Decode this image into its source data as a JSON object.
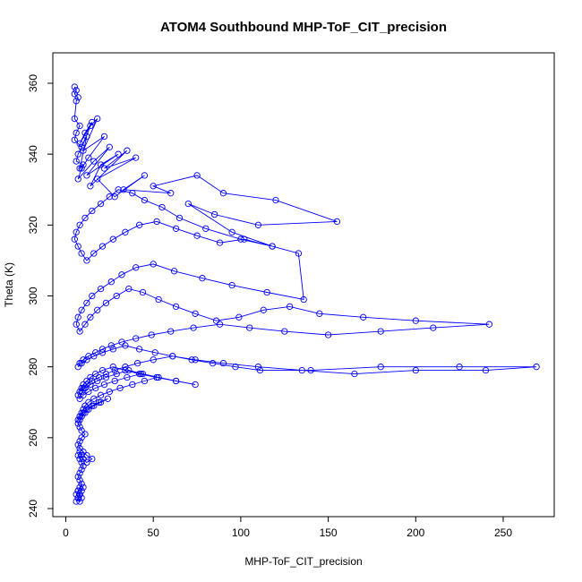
{
  "chart_data": {
    "type": "line",
    "title": "ATOM4 Southbound MHP-ToF_CIT_precision",
    "xlabel": "MHP-ToF_CIT_precision",
    "ylabel": "Theta (K)",
    "xlim": [
      0,
      280
    ],
    "ylim": [
      237,
      368
    ],
    "xticks": [
      0,
      50,
      100,
      150,
      200,
      250
    ],
    "yticks": [
      240,
      260,
      280,
      300,
      320,
      340,
      360
    ],
    "grid": false,
    "style": "line with open circle markers",
    "color": "#0000ff",
    "series": [
      {
        "name": "MHP-ToF_CIT_precision",
        "x": [
          5,
          6,
          5,
          7,
          6,
          5,
          8,
          6,
          5,
          9,
          7,
          6,
          10,
          8,
          12,
          9,
          15,
          11,
          8,
          14,
          18,
          10,
          22,
          13,
          9,
          7,
          16,
          25,
          12,
          30,
          20,
          14,
          35,
          22,
          40,
          18,
          28,
          45,
          33,
          60,
          50,
          75,
          90,
          120,
          155,
          110,
          85,
          70,
          95,
          118,
          100,
          80,
          65,
          55,
          45,
          38,
          30,
          25,
          20,
          15,
          11,
          8,
          6,
          5,
          7,
          9,
          12,
          16,
          21,
          27,
          34,
          42,
          52,
          63,
          75,
          88,
          102,
          118,
          133,
          136,
          115,
          95,
          78,
          62,
          50,
          40,
          32,
          26,
          20,
          15,
          12,
          9,
          7,
          6,
          8,
          11,
          14,
          18,
          23,
          29,
          36,
          44,
          53,
          63,
          74,
          86,
          99,
          113,
          128,
          145,
          170,
          200,
          242,
          210,
          180,
          150,
          125,
          105,
          88,
          73,
          60,
          49,
          40,
          32,
          26,
          21,
          17,
          13,
          10,
          8,
          7,
          9,
          12,
          16,
          21,
          27,
          34,
          42,
          51,
          61,
          72,
          84,
          97,
          111,
          140,
          180,
          225,
          269,
          240,
          200,
          165,
          135,
          110,
          90,
          74,
          61,
          50,
          41,
          34,
          28,
          23,
          19,
          15,
          12,
          10,
          9,
          11,
          14,
          18,
          23,
          29,
          36,
          44,
          53,
          63,
          74,
          63,
          52,
          42,
          34,
          27,
          21,
          17,
          14,
          12,
          10,
          9,
          8,
          7,
          8,
          10,
          13,
          17,
          22,
          28,
          35,
          43,
          52,
          45,
          38,
          31,
          25,
          20,
          16,
          13,
          11,
          10,
          9,
          8,
          7,
          8,
          10,
          12,
          15,
          19,
          24,
          20,
          16,
          13,
          11,
          9,
          8,
          7,
          8,
          9,
          11,
          9,
          8,
          7,
          8,
          10,
          12,
          15,
          12,
          10,
          9,
          8,
          7,
          8,
          9,
          10,
          9,
          8,
          7,
          8,
          9,
          8,
          7,
          8,
          9,
          8,
          7,
          6,
          7,
          8,
          7,
          6,
          7,
          8,
          9,
          10
        ],
        "y": [
          359,
          358,
          357,
          356,
          355,
          350,
          348,
          346,
          344,
          342,
          340,
          338,
          337,
          336,
          345,
          342,
          349,
          346,
          343,
          348,
          350,
          341,
          345,
          339,
          336,
          333,
          338,
          342,
          334,
          340,
          337,
          331,
          341,
          336,
          339,
          333,
          328,
          334,
          330,
          329,
          331,
          334,
          329,
          327,
          321,
          320,
          323,
          326,
          318,
          314,
          316,
          319,
          322,
          325,
          327,
          329,
          330,
          328,
          326,
          324,
          322,
          320,
          318,
          316,
          314,
          312,
          310,
          312,
          314,
          316,
          318,
          320,
          321,
          319,
          317,
          315,
          316,
          314,
          312,
          299,
          301,
          303,
          305,
          307,
          309,
          308,
          306,
          304,
          302,
          300,
          298,
          296,
          294,
          292,
          290,
          292,
          294,
          296,
          298,
          300,
          302,
          301,
          299,
          297,
          295,
          293,
          294,
          296,
          297,
          295,
          294,
          293,
          292,
          291,
          290,
          289,
          290,
          291,
          292,
          291,
          290,
          289,
          288,
          287,
          286,
          285,
          284,
          283,
          282,
          281,
          280,
          281,
          282,
          283,
          284,
          285,
          286,
          285,
          284,
          283,
          282,
          281,
          280,
          279,
          279,
          280,
          280,
          280,
          279,
          279,
          278,
          279,
          280,
          281,
          282,
          283,
          282,
          281,
          280,
          279,
          278,
          277,
          276,
          275,
          274,
          273,
          274,
          275,
          276,
          277,
          278,
          279,
          278,
          277,
          276,
          275,
          276,
          277,
          278,
          279,
          280,
          279,
          278,
          277,
          276,
          275,
          274,
          273,
          272,
          271,
          272,
          273,
          274,
          275,
          276,
          277,
          278,
          277,
          276,
          275,
          274,
          273,
          272,
          271,
          270,
          269,
          268,
          267,
          266,
          265,
          266,
          267,
          268,
          269,
          270,
          271,
          270,
          269,
          268,
          267,
          266,
          265,
          264,
          263,
          262,
          261,
          260,
          259,
          258,
          257,
          256,
          255,
          254,
          253,
          254,
          255,
          256,
          255,
          254,
          253,
          252,
          251,
          250,
          249,
          248,
          247,
          246,
          245,
          244,
          243,
          242,
          243,
          244,
          245,
          244,
          243,
          242,
          243,
          244,
          245,
          246
        ]
      }
    ]
  }
}
